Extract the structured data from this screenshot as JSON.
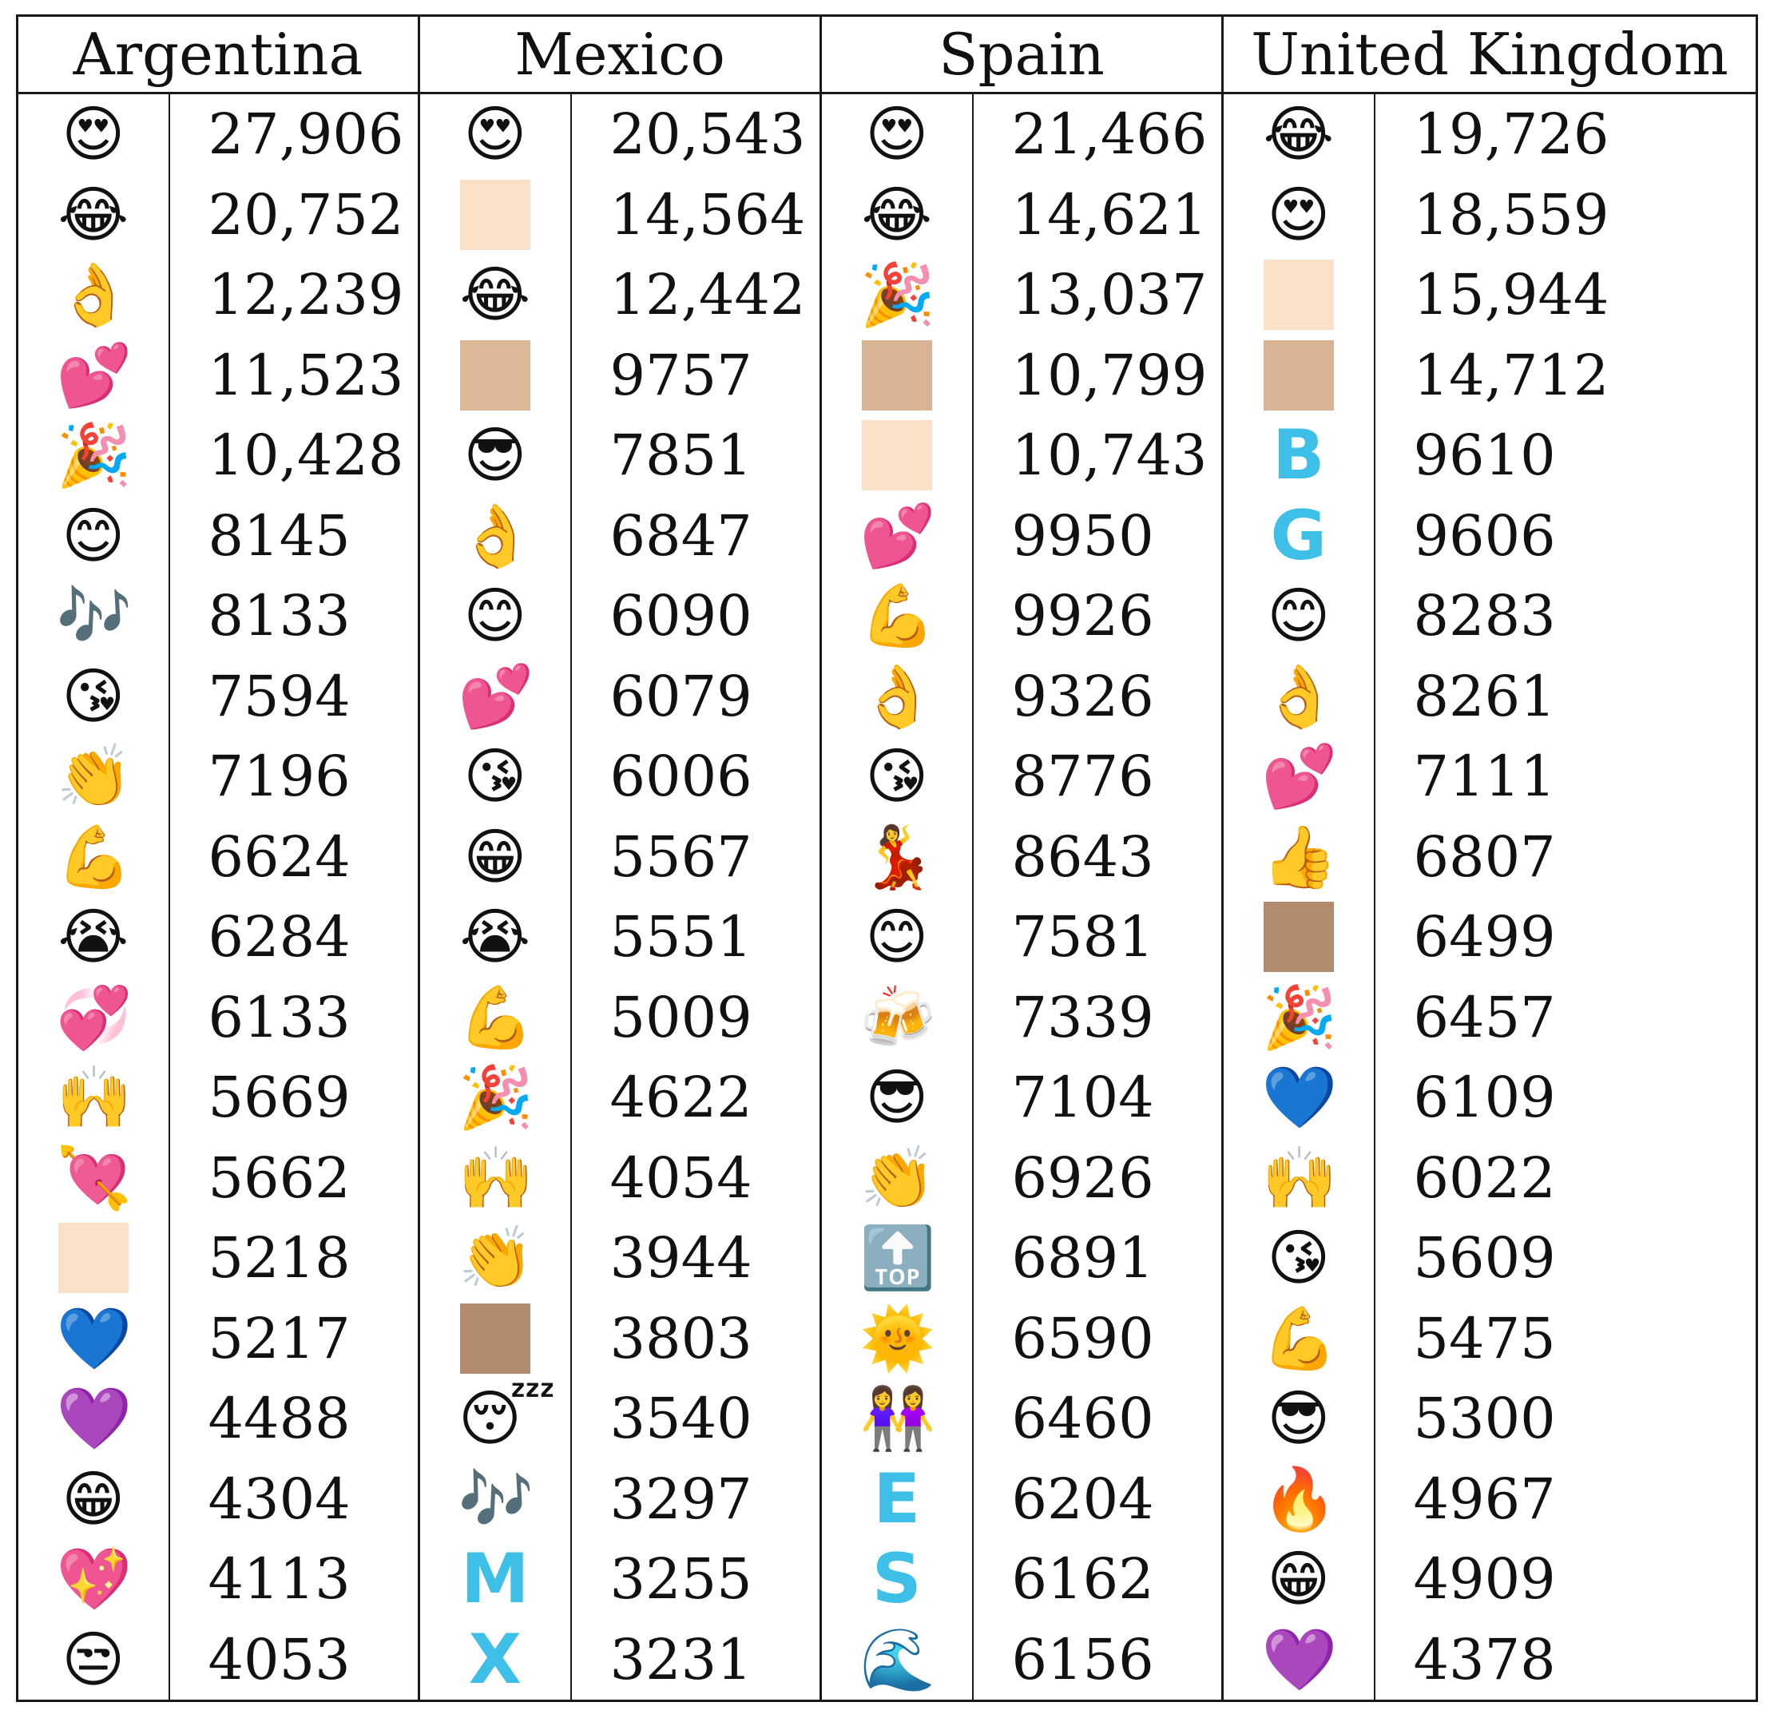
{
  "headers": [
    "Argentina",
    "Mexico",
    "Spain",
    "United Kingdom"
  ],
  "columns": [
    {
      "country": "Argentina",
      "rows": [
        {
          "icon": "smiling-face-with-heart-eyes-icon",
          "glyph": "😍",
          "count": "27,906"
        },
        {
          "icon": "face-with-tears-of-joy-icon",
          "glyph": "😂",
          "count": "20,752"
        },
        {
          "icon": "ok-hand-icon",
          "glyph": "👌",
          "count": "12,239"
        },
        {
          "icon": "two-hearts-icon",
          "glyph": "💕",
          "count": "11,523"
        },
        {
          "icon": "party-popper-icon",
          "glyph": "🎉",
          "count": "10,428"
        },
        {
          "icon": "smiling-face-with-smiling-eyes-icon",
          "glyph": "😊",
          "count": "8145"
        },
        {
          "icon": "musical-notes-icon",
          "glyph": "🎶",
          "count": "8133"
        },
        {
          "icon": "face-blowing-kiss-icon",
          "glyph": "😘",
          "count": "7594"
        },
        {
          "icon": "clapping-hands-icon",
          "glyph": "👏",
          "count": "7196"
        },
        {
          "icon": "flexed-biceps-icon",
          "glyph": "💪",
          "count": "6624"
        },
        {
          "icon": "loudly-crying-face-icon",
          "glyph": "😭",
          "count": "6284"
        },
        {
          "icon": "revolving-hearts-icon",
          "glyph": "💞",
          "count": "6133"
        },
        {
          "icon": "raising-hands-icon",
          "glyph": "🙌",
          "count": "5669"
        },
        {
          "icon": "heart-with-arrow-icon",
          "glyph": "💘",
          "count": "5662"
        },
        {
          "icon": "skin-tone-light-swatch",
          "swatch": "#fbe0c8",
          "count": "5218"
        },
        {
          "icon": "blue-heart-icon",
          "glyph": "💙",
          "count": "5217"
        },
        {
          "icon": "purple-heart-icon",
          "glyph": "💜",
          "count": "4488"
        },
        {
          "icon": "beaming-face-with-smiling-eyes-icon",
          "glyph": "😁",
          "count": "4304"
        },
        {
          "icon": "sparkling-heart-icon",
          "glyph": "💖",
          "count": "4113"
        },
        {
          "icon": "unamused-face-icon",
          "glyph": "😒",
          "count": "4053"
        }
      ]
    },
    {
      "country": "Mexico",
      "rows": [
        {
          "icon": "smiling-face-with-heart-eyes-icon",
          "glyph": "😍",
          "count": "20,543"
        },
        {
          "icon": "skin-tone-light-swatch",
          "swatch": "#fbe0c8",
          "count": "14,564"
        },
        {
          "icon": "face-with-tears-of-joy-icon",
          "glyph": "😂",
          "count": "12,442"
        },
        {
          "icon": "skin-tone-medium-light-swatch",
          "swatch": "#dcb898",
          "count": "9757"
        },
        {
          "icon": "smiling-face-with-sunglasses-icon",
          "glyph": "😎",
          "count": "7851"
        },
        {
          "icon": "ok-hand-icon",
          "glyph": "👌",
          "count": "6847"
        },
        {
          "icon": "smiling-face-with-smiling-eyes-icon",
          "glyph": "😊",
          "count": "6090"
        },
        {
          "icon": "two-hearts-icon",
          "glyph": "💕",
          "count": "6079"
        },
        {
          "icon": "face-blowing-kiss-icon",
          "glyph": "😘",
          "count": "6006"
        },
        {
          "icon": "beaming-face-with-smiling-eyes-icon",
          "glyph": "😁",
          "count": "5567"
        },
        {
          "icon": "loudly-crying-face-icon",
          "glyph": "😭",
          "count": "5551"
        },
        {
          "icon": "flexed-biceps-icon",
          "glyph": "💪",
          "count": "5009"
        },
        {
          "icon": "party-popper-icon",
          "glyph": "🎉",
          "count": "4622"
        },
        {
          "icon": "raising-hands-icon",
          "glyph": "🙌",
          "count": "4054"
        },
        {
          "icon": "clapping-hands-icon",
          "glyph": "👏",
          "count": "3944"
        },
        {
          "icon": "skin-tone-medium-swatch",
          "swatch": "#b28a6e",
          "count": "3803"
        },
        {
          "icon": "sleeping-face-icon",
          "glyph": "😴",
          "count": "3540"
        },
        {
          "icon": "musical-notes-icon",
          "glyph": "🎶",
          "count": "3297"
        },
        {
          "icon": "regional-indicator-m-icon",
          "letter": "M",
          "count": "3255"
        },
        {
          "icon": "regional-indicator-x-icon",
          "letter": "X",
          "count": "3231"
        }
      ]
    },
    {
      "country": "Spain",
      "rows": [
        {
          "icon": "smiling-face-with-heart-eyes-icon",
          "glyph": "😍",
          "count": "21,466"
        },
        {
          "icon": "face-with-tears-of-joy-icon",
          "glyph": "😂",
          "count": "14,621"
        },
        {
          "icon": "party-popper-icon",
          "glyph": "🎉",
          "count": "13,037"
        },
        {
          "icon": "skin-tone-medium-light-swatch",
          "swatch": "#d8b494",
          "count": "10,799"
        },
        {
          "icon": "skin-tone-light-swatch",
          "swatch": "#fbe0c8",
          "count": "10,743"
        },
        {
          "icon": "two-hearts-icon",
          "glyph": "💕",
          "count": "9950"
        },
        {
          "icon": "flexed-biceps-icon",
          "glyph": "💪",
          "count": "9926"
        },
        {
          "icon": "ok-hand-icon",
          "glyph": "👌",
          "count": "9326"
        },
        {
          "icon": "face-blowing-kiss-icon",
          "glyph": "😘",
          "count": "8776"
        },
        {
          "icon": "woman-dancing-icon",
          "glyph": "💃",
          "count": "8643"
        },
        {
          "icon": "smiling-face-with-smiling-eyes-icon",
          "glyph": "😊",
          "count": "7581"
        },
        {
          "icon": "clinking-beer-mugs-icon",
          "glyph": "🍻",
          "count": "7339"
        },
        {
          "icon": "smiling-face-with-sunglasses-icon",
          "glyph": "😎",
          "count": "7104"
        },
        {
          "icon": "clapping-hands-icon",
          "glyph": "👏",
          "count": "6926"
        },
        {
          "icon": "top-arrow-icon",
          "glyph": "🔝",
          "count": "6891"
        },
        {
          "icon": "sun-with-face-icon",
          "glyph": "🌞",
          "count": "6590"
        },
        {
          "icon": "women-holding-hands-icon",
          "glyph": "👭",
          "count": "6460"
        },
        {
          "icon": "regional-indicator-e-icon",
          "letter": "E",
          "count": "6204"
        },
        {
          "icon": "regional-indicator-s-icon",
          "letter": "S",
          "count": "6162"
        },
        {
          "icon": "water-wave-icon",
          "glyph": "🌊",
          "count": "6156"
        }
      ]
    },
    {
      "country": "United Kingdom",
      "rows": [
        {
          "icon": "face-with-tears-of-joy-icon",
          "glyph": "😂",
          "count": "19,726"
        },
        {
          "icon": "smiling-face-with-heart-eyes-icon",
          "glyph": "😍",
          "count": "18,559"
        },
        {
          "icon": "skin-tone-light-swatch",
          "swatch": "#fbe0c8",
          "count": "15,944"
        },
        {
          "icon": "skin-tone-medium-light-swatch",
          "swatch": "#d8b494",
          "count": "14,712"
        },
        {
          "icon": "regional-indicator-b-icon",
          "letter": "B",
          "count": "9610"
        },
        {
          "icon": "regional-indicator-g-icon",
          "letter": "G",
          "count": "9606"
        },
        {
          "icon": "smiling-face-with-smiling-eyes-icon",
          "glyph": "😊",
          "count": "8283"
        },
        {
          "icon": "ok-hand-icon",
          "glyph": "👌",
          "count": "8261"
        },
        {
          "icon": "two-hearts-icon",
          "glyph": "💕",
          "count": "7111"
        },
        {
          "icon": "thumbs-up-icon",
          "glyph": "👍",
          "count": "6807"
        },
        {
          "icon": "skin-tone-medium-swatch",
          "swatch": "#b28a6e",
          "count": "6499"
        },
        {
          "icon": "party-popper-icon",
          "glyph": "🎉",
          "count": "6457"
        },
        {
          "icon": "blue-heart-icon",
          "glyph": "💙",
          "count": "6109"
        },
        {
          "icon": "raising-hands-icon",
          "glyph": "🙌",
          "count": "6022"
        },
        {
          "icon": "face-blowing-kiss-icon",
          "glyph": "😘",
          "count": "5609"
        },
        {
          "icon": "flexed-biceps-icon",
          "glyph": "💪",
          "count": "5475"
        },
        {
          "icon": "smiling-face-with-sunglasses-icon",
          "glyph": "😎",
          "count": "5300"
        },
        {
          "icon": "fire-icon",
          "glyph": "🔥",
          "count": "4967"
        },
        {
          "icon": "beaming-face-with-smiling-eyes-icon",
          "glyph": "😁",
          "count": "4909"
        },
        {
          "icon": "purple-heart-icon",
          "glyph": "💜",
          "count": "4378"
        }
      ]
    }
  ],
  "letter_color": "#3ebfe8",
  "border_color": "#1a1a1a"
}
